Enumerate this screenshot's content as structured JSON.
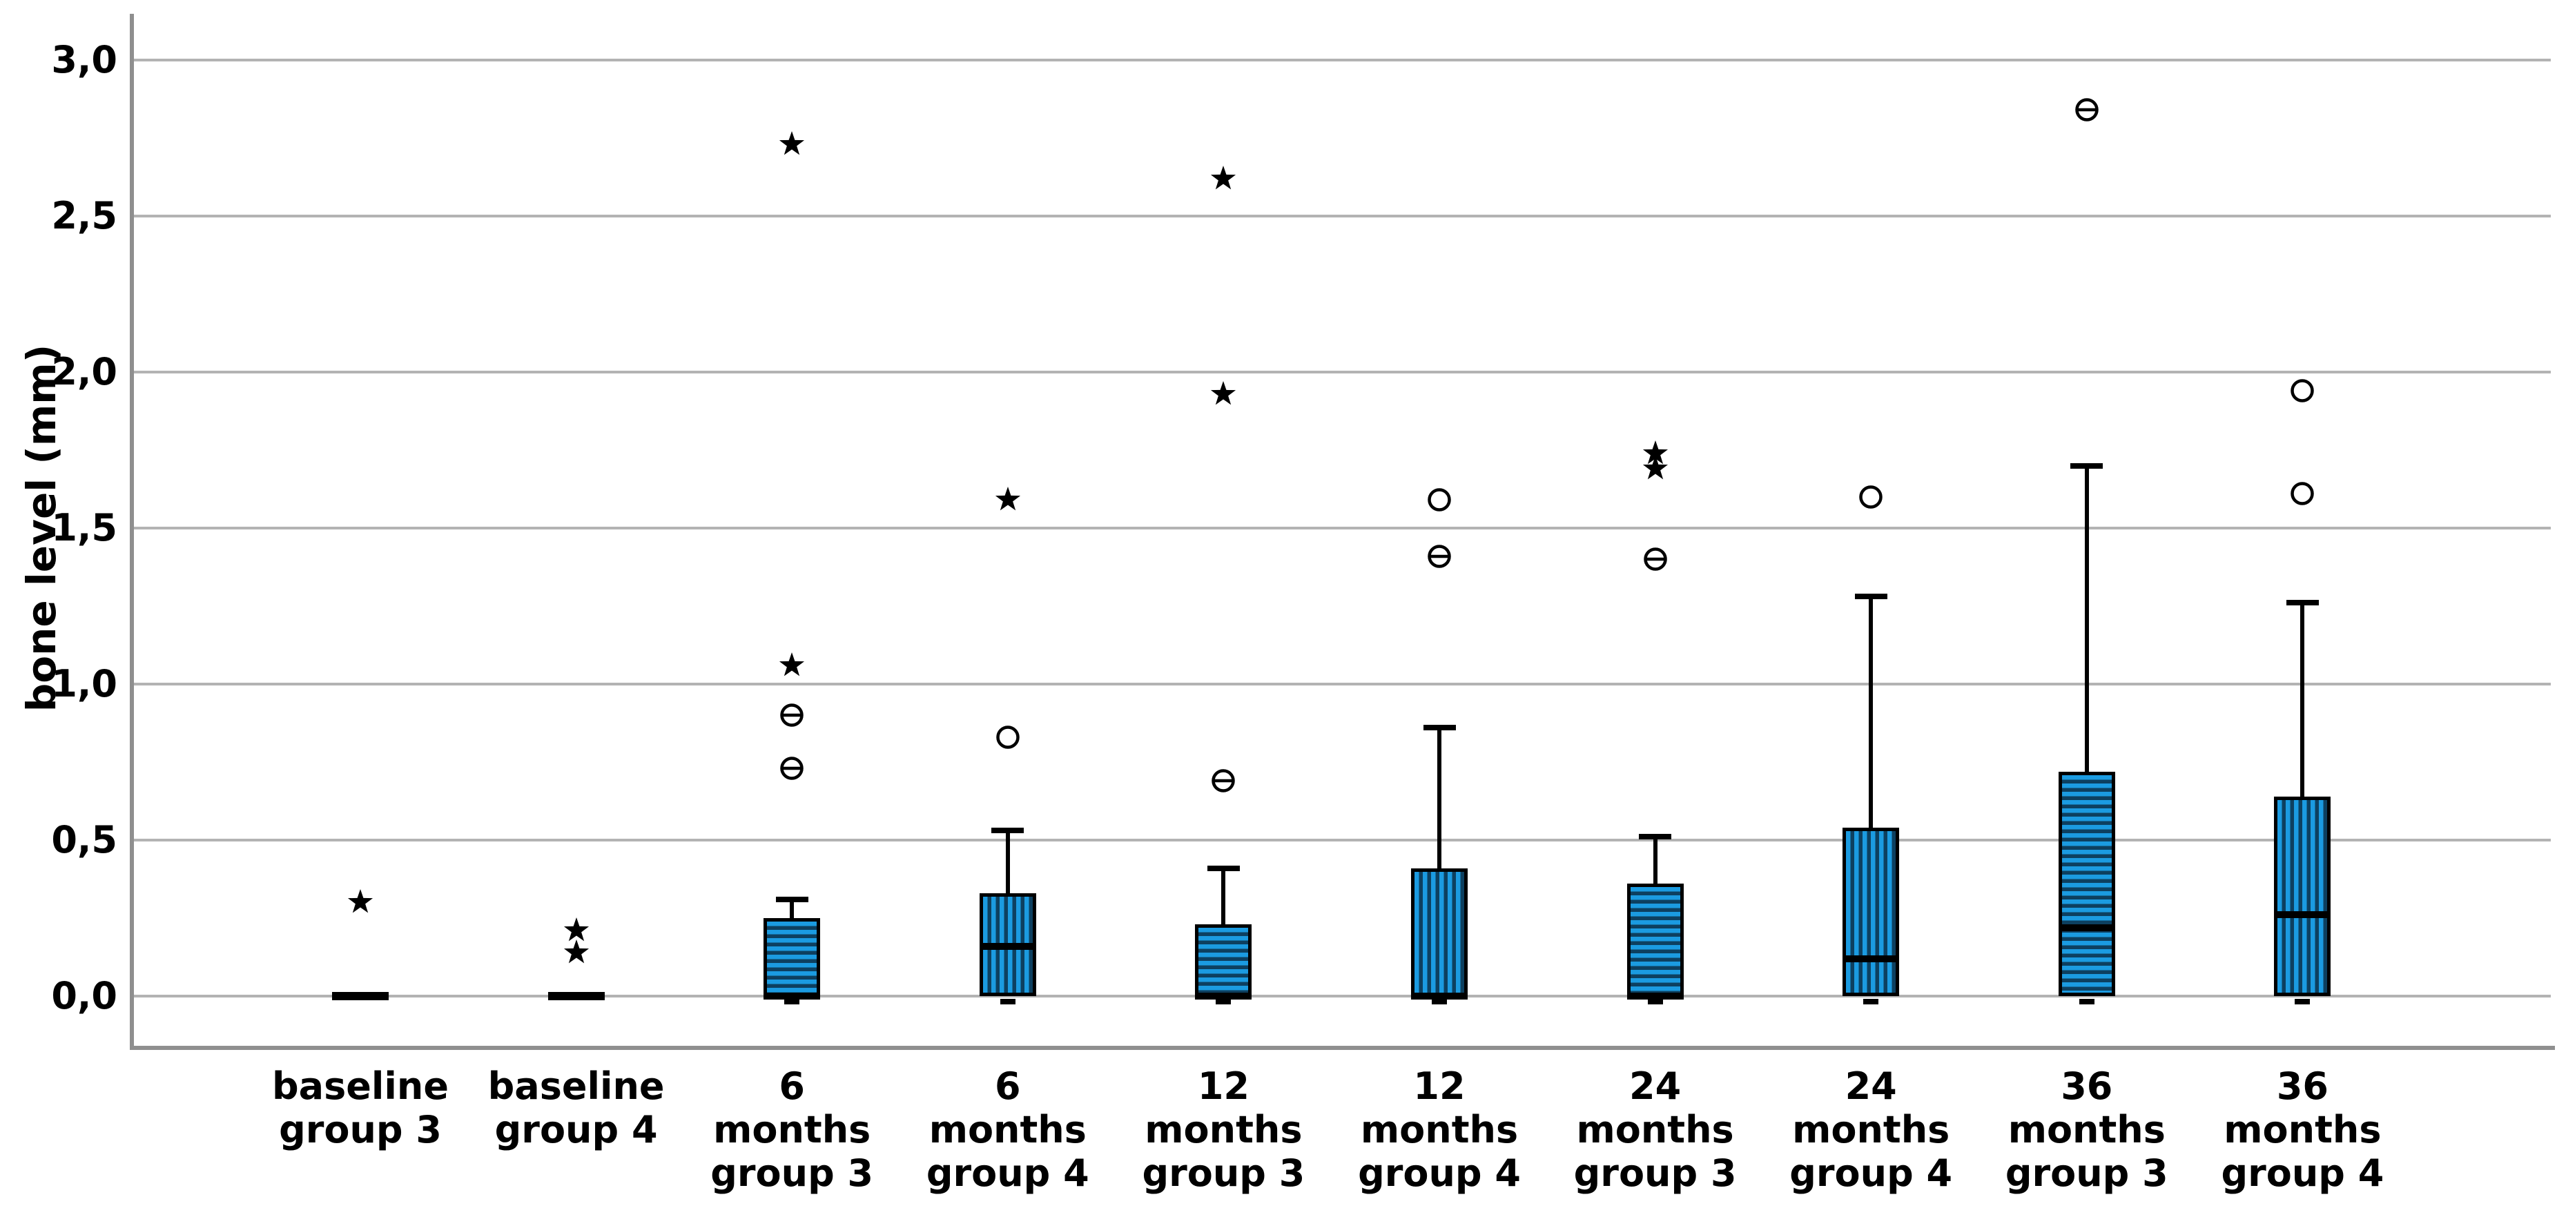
{
  "chart_data": {
    "type": "box",
    "title": "",
    "xlabel": "",
    "ylabel": "bone level (mm)",
    "ylim": [
      -0.16,
      3.15
    ],
    "yticks": [
      0.0,
      0.5,
      1.0,
      1.5,
      2.0,
      2.5,
      3.0
    ],
    "ytick_labels": [
      "0,0",
      "0,5",
      "1,0",
      "1,5",
      "2,0",
      "2,5",
      "3,0"
    ],
    "decimal_separator": ",",
    "grid": "horizontal",
    "legend": "none",
    "categories": [
      "baseline group 3",
      "baseline group 4",
      "6 months group 3",
      "6 months group 4",
      "12 months group 3",
      "12 months group 4",
      "24 months group 3",
      "24 months group 4",
      "36 months group 3",
      "36 months group 4"
    ],
    "category_label_lines": [
      [
        "baseline",
        "group 3"
      ],
      [
        "baseline",
        "group 4"
      ],
      [
        "6",
        "months",
        "group 3"
      ],
      [
        "6",
        "months",
        "group 4"
      ],
      [
        "12",
        "months",
        "group 3"
      ],
      [
        "12",
        "months",
        "group 4"
      ],
      [
        "24",
        "months",
        "group 3"
      ],
      [
        "24",
        "months",
        "group 4"
      ],
      [
        "36",
        "months",
        "group 3"
      ],
      [
        "36",
        "months",
        "group 4"
      ]
    ],
    "boxes": [
      {
        "category": "baseline group 3",
        "group": 3,
        "pattern": "horizontal-stripes",
        "collapsed": true,
        "q1": 0.0,
        "median": 0.0,
        "q3": 0.0,
        "whisker_low": 0.0,
        "whisker_high": 0.0,
        "outliers": [
          {
            "type": "star",
            "value": 0.3
          }
        ]
      },
      {
        "category": "baseline group 4",
        "group": 4,
        "pattern": "vertical-stripes",
        "collapsed": true,
        "q1": 0.0,
        "median": 0.0,
        "q3": 0.0,
        "whisker_low": 0.0,
        "whisker_high": 0.0,
        "outliers": [
          {
            "type": "star",
            "value": 0.21
          },
          {
            "type": "star",
            "value": 0.14
          }
        ]
      },
      {
        "category": "6 months group 3",
        "group": 3,
        "pattern": "horizontal-stripes",
        "collapsed": false,
        "q1": 0.0,
        "median": 0.0,
        "q3": 0.25,
        "whisker_low": 0.0,
        "whisker_high": 0.31,
        "outliers": [
          {
            "type": "star",
            "value": 2.73
          },
          {
            "type": "star",
            "value": 1.06
          },
          {
            "type": "circle-double",
            "value": 0.9
          },
          {
            "type": "circle-double",
            "value": 0.73
          }
        ]
      },
      {
        "category": "6 months group 4",
        "group": 4,
        "pattern": "vertical-stripes",
        "collapsed": false,
        "q1": 0.0,
        "median": 0.16,
        "q3": 0.33,
        "whisker_low": 0.0,
        "whisker_high": 0.53,
        "outliers": [
          {
            "type": "star",
            "value": 1.59
          },
          {
            "type": "circle",
            "value": 0.83
          }
        ]
      },
      {
        "category": "12 months group 3",
        "group": 3,
        "pattern": "horizontal-stripes",
        "collapsed": false,
        "q1": 0.0,
        "median": 0.0,
        "q3": 0.23,
        "whisker_low": 0.0,
        "whisker_high": 0.41,
        "outliers": [
          {
            "type": "star",
            "value": 2.62
          },
          {
            "type": "star",
            "value": 1.93
          },
          {
            "type": "circle-double",
            "value": 0.69
          }
        ]
      },
      {
        "category": "12 months group 4",
        "group": 4,
        "pattern": "vertical-stripes",
        "collapsed": false,
        "q1": 0.0,
        "median": 0.0,
        "q3": 0.41,
        "whisker_low": 0.0,
        "whisker_high": 0.86,
        "outliers": [
          {
            "type": "circle",
            "value": 1.59
          },
          {
            "type": "circle-double",
            "value": 1.41
          }
        ]
      },
      {
        "category": "24 months group 3",
        "group": 3,
        "pattern": "horizontal-stripes",
        "collapsed": false,
        "q1": 0.0,
        "median": 0.0,
        "q3": 0.36,
        "whisker_low": 0.0,
        "whisker_high": 0.51,
        "outliers": [
          {
            "type": "star",
            "value": 1.74
          },
          {
            "type": "star",
            "value": 1.69
          },
          {
            "type": "circle-double",
            "value": 1.4
          }
        ]
      },
      {
        "category": "24 months group 4",
        "group": 4,
        "pattern": "vertical-stripes",
        "collapsed": false,
        "q1": 0.0,
        "median": 0.12,
        "q3": 0.54,
        "whisker_low": 0.0,
        "whisker_high": 1.28,
        "outliers": [
          {
            "type": "circle",
            "value": 1.6
          }
        ]
      },
      {
        "category": "36 months group 3",
        "group": 3,
        "pattern": "horizontal-stripes",
        "collapsed": false,
        "q1": 0.0,
        "median": 0.22,
        "q3": 0.72,
        "whisker_low": 0.0,
        "whisker_high": 1.7,
        "outliers": [
          {
            "type": "circle-double",
            "value": 2.84
          }
        ]
      },
      {
        "category": "36 months group 4",
        "group": 4,
        "pattern": "vertical-stripes",
        "collapsed": false,
        "q1": 0.0,
        "median": 0.26,
        "q3": 0.64,
        "whisker_low": 0.0,
        "whisker_high": 1.26,
        "outliers": [
          {
            "type": "circle",
            "value": 1.94
          },
          {
            "type": "circle",
            "value": 1.61
          }
        ]
      }
    ],
    "colors": {
      "box_fill": "#1B9BE1",
      "box_stripe": "#0D4060",
      "box_border": "#000000",
      "outlier": "#000000",
      "gridline": "#b3b3b3",
      "axis": "#8f8f8f",
      "text": "#000000",
      "background": "#ffffff"
    }
  }
}
